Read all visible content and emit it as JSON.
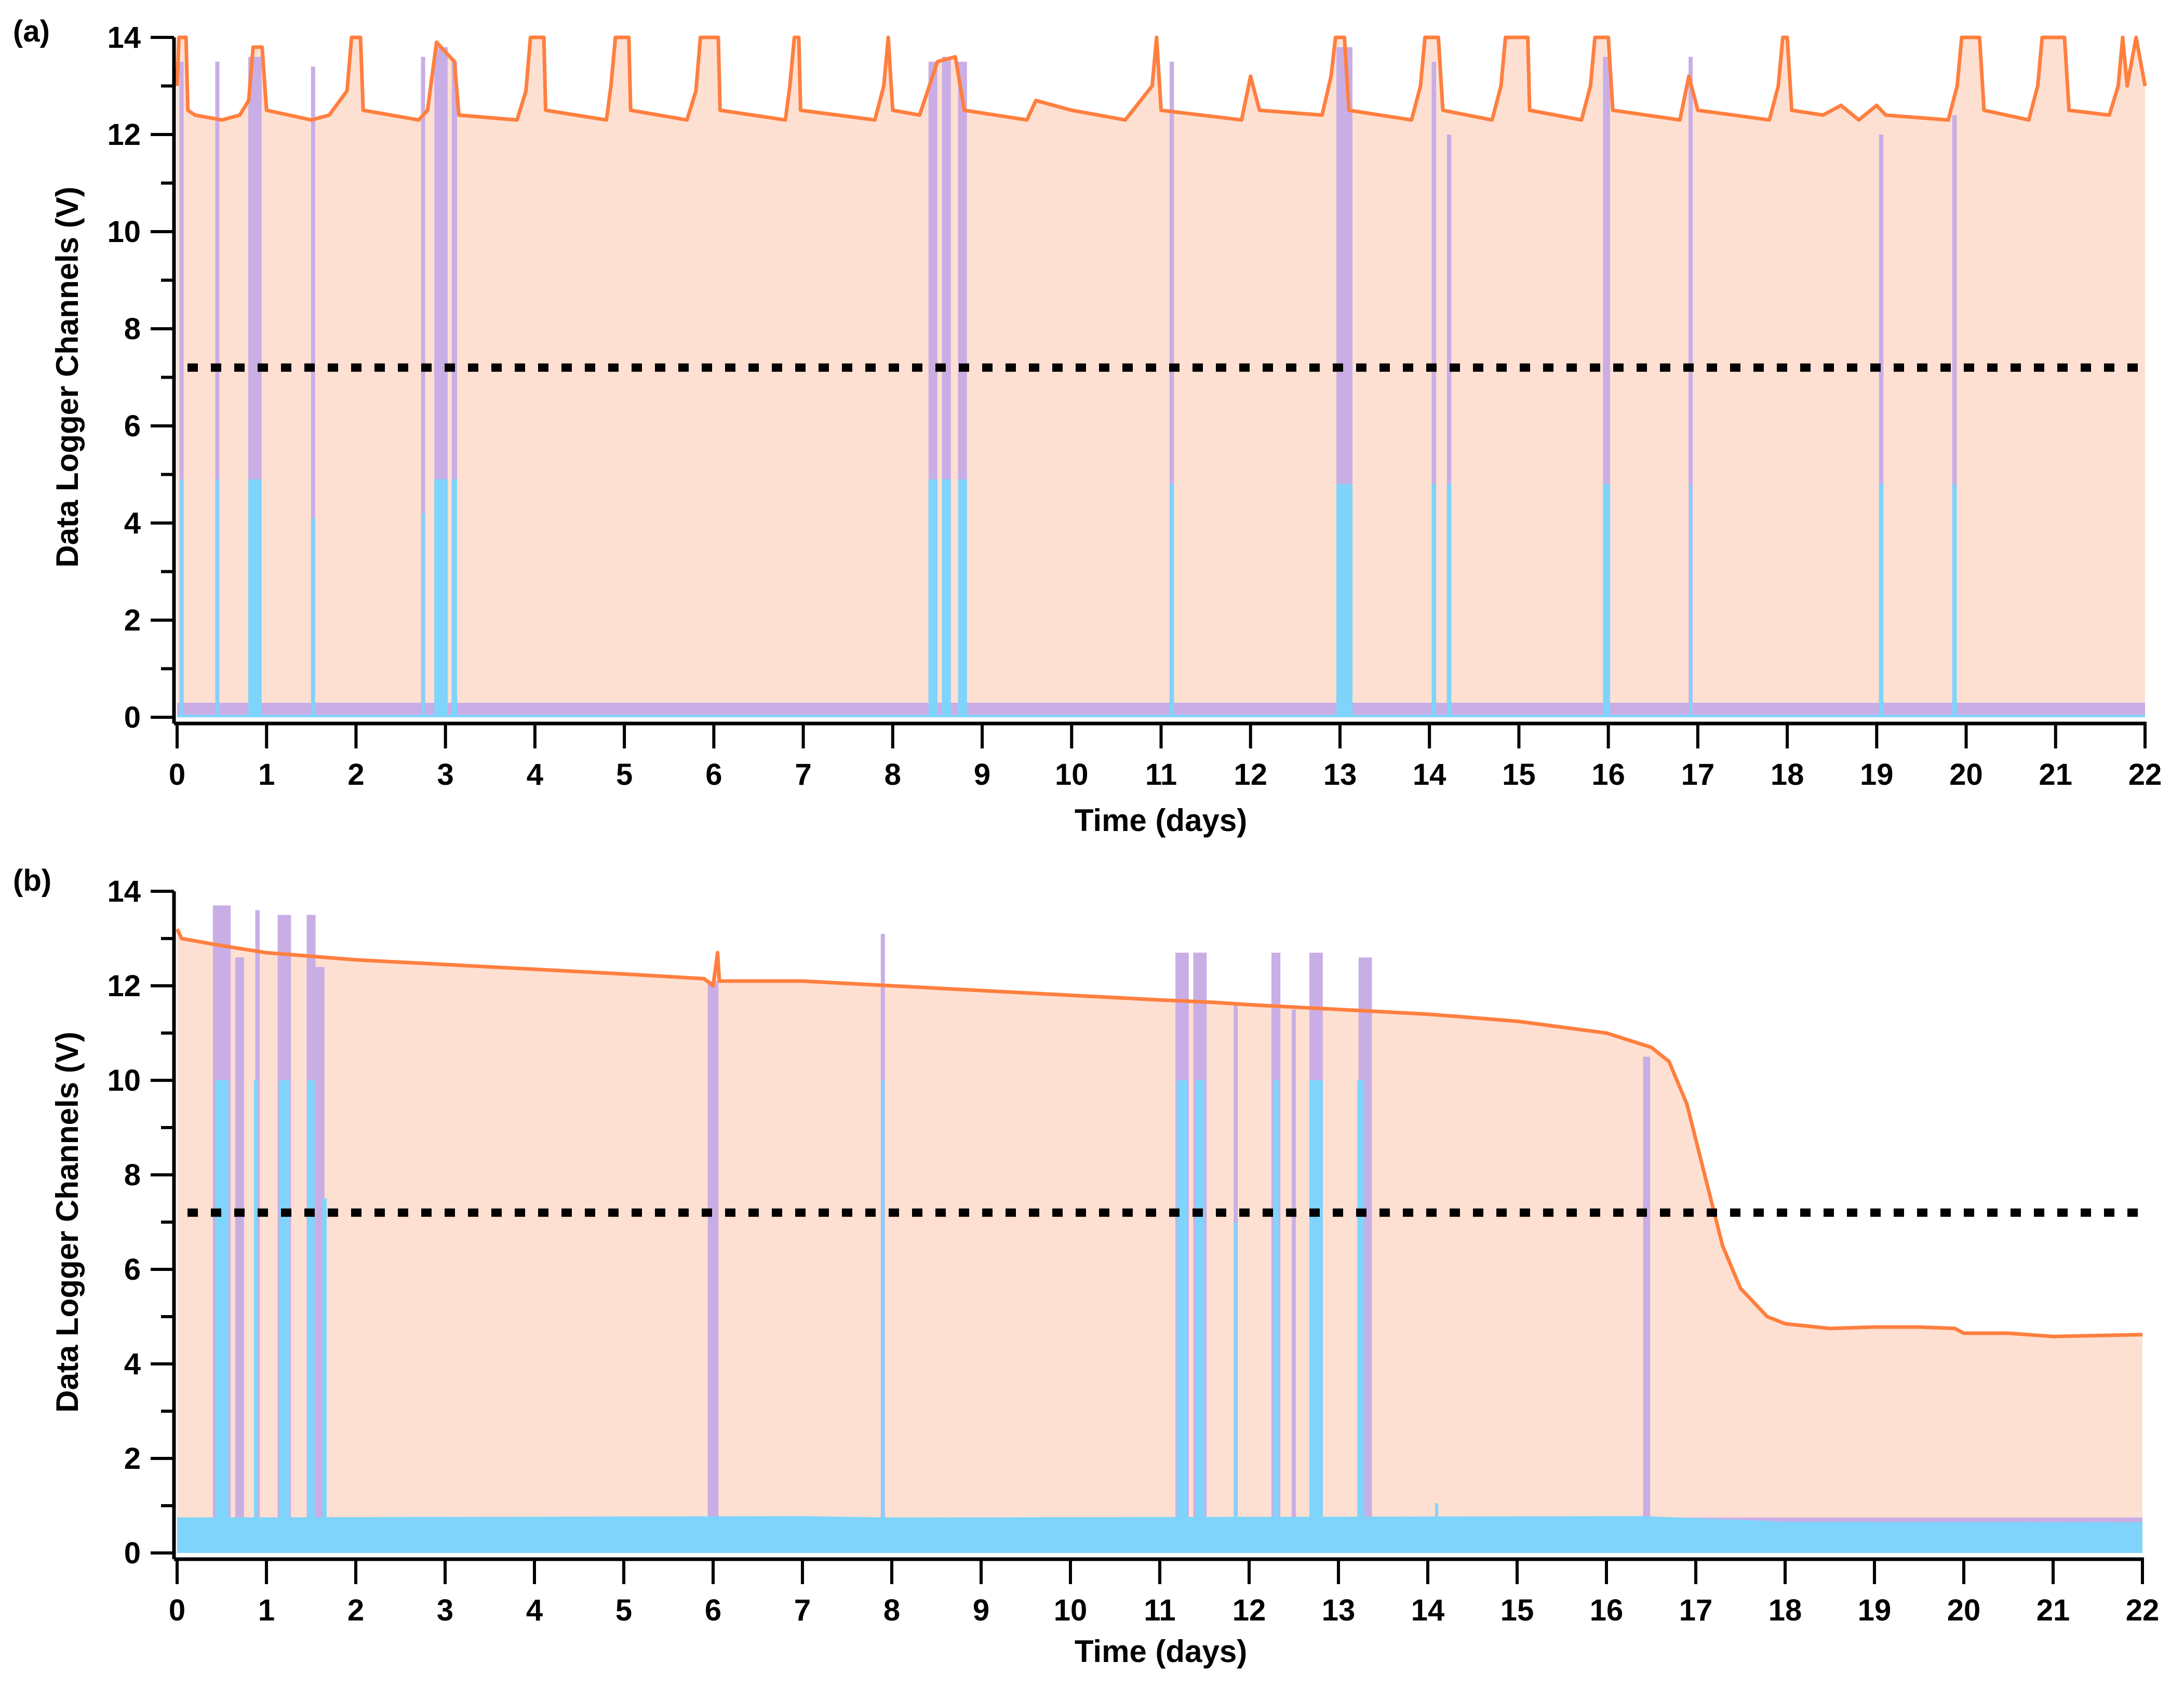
{
  "colors": {
    "battery_line": "#ff7f3f",
    "battery_fill": "#fee0d2",
    "purple_channel": "#c9aee6",
    "blue_channel": "#7fd4fb",
    "threshold": "#000000"
  },
  "chart_data": [
    {
      "type": "area",
      "panel_label": "(a)",
      "xlabel": "Time (days)",
      "ylabel": "Data Logger Channels (V)",
      "xlim": [
        0,
        22
      ],
      "ylim": [
        0,
        14
      ],
      "xticks": [
        0,
        1,
        2,
        3,
        4,
        5,
        6,
        7,
        8,
        9,
        10,
        11,
        12,
        13,
        14,
        15,
        16,
        17,
        18,
        19,
        20,
        21,
        22
      ],
      "yticks": [
        0,
        2,
        4,
        6,
        8,
        10,
        12,
        14
      ],
      "grid": false,
      "threshold": 7.2,
      "orange_series": [
        [
          0,
          13.0
        ],
        [
          0.02,
          14
        ],
        [
          0.1,
          14
        ],
        [
          0.12,
          12.5
        ],
        [
          0.2,
          12.4
        ],
        [
          0.5,
          12.3
        ],
        [
          0.7,
          12.4
        ],
        [
          0.8,
          12.7
        ],
        [
          0.85,
          13.8
        ],
        [
          0.95,
          13.8
        ],
        [
          1.0,
          12.5
        ],
        [
          1.5,
          12.3
        ],
        [
          1.7,
          12.4
        ],
        [
          1.9,
          12.9
        ],
        [
          1.95,
          14
        ],
        [
          2.05,
          14
        ],
        [
          2.08,
          12.5
        ],
        [
          2.7,
          12.3
        ],
        [
          2.8,
          12.5
        ],
        [
          2.9,
          13.9
        ],
        [
          3.1,
          13.5
        ],
        [
          3.15,
          12.4
        ],
        [
          3.8,
          12.3
        ],
        [
          3.9,
          12.9
        ],
        [
          3.95,
          14
        ],
        [
          4.1,
          14
        ],
        [
          4.12,
          12.5
        ],
        [
          4.8,
          12.3
        ],
        [
          4.85,
          13.0
        ],
        [
          4.9,
          14
        ],
        [
          5.05,
          14
        ],
        [
          5.07,
          12.5
        ],
        [
          5.7,
          12.3
        ],
        [
          5.8,
          12.9
        ],
        [
          5.85,
          14
        ],
        [
          6.05,
          14
        ],
        [
          6.07,
          12.5
        ],
        [
          6.8,
          12.3
        ],
        [
          6.85,
          13
        ],
        [
          6.9,
          14
        ],
        [
          6.95,
          14
        ],
        [
          6.97,
          12.5
        ],
        [
          7.8,
          12.3
        ],
        [
          7.9,
          13
        ],
        [
          7.95,
          14
        ],
        [
          8.0,
          12.5
        ],
        [
          8.3,
          12.4
        ],
        [
          8.5,
          13.5
        ],
        [
          8.7,
          13.6
        ],
        [
          8.8,
          12.5
        ],
        [
          9.5,
          12.3
        ],
        [
          9.6,
          12.7
        ],
        [
          9.8,
          12.6
        ],
        [
          10.0,
          12.5
        ],
        [
          10.6,
          12.3
        ],
        [
          10.9,
          13
        ],
        [
          10.95,
          14
        ],
        [
          11.0,
          12.5
        ],
        [
          11.9,
          12.3
        ],
        [
          12.0,
          13.2
        ],
        [
          12.1,
          12.5
        ],
        [
          12.8,
          12.4
        ],
        [
          12.9,
          13.2
        ],
        [
          12.95,
          14
        ],
        [
          13.05,
          14
        ],
        [
          13.1,
          12.5
        ],
        [
          13.8,
          12.3
        ],
        [
          13.9,
          13
        ],
        [
          13.95,
          14
        ],
        [
          14.1,
          14
        ],
        [
          14.15,
          12.5
        ],
        [
          14.7,
          12.3
        ],
        [
          14.8,
          13
        ],
        [
          14.85,
          14
        ],
        [
          15.1,
          14
        ],
        [
          15.12,
          12.5
        ],
        [
          15.7,
          12.3
        ],
        [
          15.8,
          13
        ],
        [
          15.85,
          14
        ],
        [
          16.0,
          14
        ],
        [
          16.05,
          12.5
        ],
        [
          16.8,
          12.3
        ],
        [
          16.9,
          13.2
        ],
        [
          17.0,
          12.5
        ],
        [
          17.8,
          12.3
        ],
        [
          17.9,
          13
        ],
        [
          17.95,
          14
        ],
        [
          18.0,
          14
        ],
        [
          18.05,
          12.5
        ],
        [
          18.4,
          12.4
        ],
        [
          18.6,
          12.6
        ],
        [
          18.8,
          12.3
        ],
        [
          19.0,
          12.6
        ],
        [
          19.1,
          12.4
        ],
        [
          19.8,
          12.3
        ],
        [
          19.9,
          13
        ],
        [
          19.95,
          14
        ],
        [
          20.15,
          14
        ],
        [
          20.2,
          12.5
        ],
        [
          20.7,
          12.3
        ],
        [
          20.8,
          13
        ],
        [
          20.85,
          14
        ],
        [
          21.1,
          14
        ],
        [
          21.15,
          12.5
        ],
        [
          21.6,
          12.4
        ],
        [
          21.7,
          13
        ],
        [
          21.75,
          14
        ],
        [
          21.8,
          13
        ],
        [
          21.9,
          14
        ],
        [
          22,
          13
        ]
      ],
      "purple_baseline": 0.3,
      "purple_spikes": [
        [
          0.05,
          13.5,
          0.03
        ],
        [
          0.45,
          13.5,
          0.02
        ],
        [
          0.87,
          13.6,
          0.15
        ],
        [
          1.52,
          13.4,
          0.04
        ],
        [
          2.75,
          13.6,
          0.02
        ],
        [
          2.95,
          13.8,
          0.15
        ],
        [
          3.1,
          13.5,
          0.06
        ],
        [
          8.45,
          13.5,
          0.1
        ],
        [
          8.6,
          13.6,
          0.1
        ],
        [
          8.78,
          13.5,
          0.1
        ],
        [
          11.12,
          13.5,
          0.05
        ],
        [
          13.05,
          13.8,
          0.18
        ],
        [
          14.05,
          13.5,
          0.05
        ],
        [
          14.22,
          12.0,
          0.05
        ],
        [
          15.98,
          13.6,
          0.08
        ],
        [
          16.92,
          13.6,
          0.03
        ],
        [
          19.05,
          12.0,
          0.05
        ],
        [
          19.87,
          12.4,
          0.05
        ]
      ],
      "blue_baseline": [
        [
          0,
          0.05
        ],
        [
          22,
          0.05
        ]
      ],
      "blue_spikes": [
        [
          0.05,
          4.9,
          0.03
        ],
        [
          0.45,
          4.9,
          0.02
        ],
        [
          0.87,
          4.9,
          0.15
        ],
        [
          1.52,
          4.1,
          0.04
        ],
        [
          2.75,
          4.2,
          0.02
        ],
        [
          2.95,
          4.9,
          0.15
        ],
        [
          3.1,
          4.9,
          0.06
        ],
        [
          8.45,
          4.9,
          0.1
        ],
        [
          8.6,
          4.9,
          0.1
        ],
        [
          8.78,
          4.9,
          0.1
        ],
        [
          11.12,
          4.8,
          0.05
        ],
        [
          13.05,
          4.8,
          0.18
        ],
        [
          14.05,
          4.8,
          0.05
        ],
        [
          14.22,
          4.8,
          0.05
        ],
        [
          15.98,
          4.8,
          0.08
        ],
        [
          16.92,
          4.8,
          0.03
        ],
        [
          19.05,
          4.8,
          0.05
        ],
        [
          19.87,
          4.8,
          0.05
        ]
      ]
    },
    {
      "type": "area",
      "panel_label": "(b)",
      "xlabel": "Time (days)",
      "ylabel": "Data Logger Channels (V)",
      "xlim": [
        0,
        22
      ],
      "ylim": [
        0,
        14
      ],
      "xticks": [
        0,
        1,
        2,
        3,
        4,
        5,
        6,
        7,
        8,
        9,
        10,
        11,
        12,
        13,
        14,
        15,
        16,
        17,
        18,
        19,
        20,
        21,
        22
      ],
      "yticks": [
        0,
        2,
        4,
        6,
        8,
        10,
        12,
        14
      ],
      "grid": false,
      "threshold": 7.2,
      "orange_series": [
        [
          0,
          13.2
        ],
        [
          0.05,
          13.0
        ],
        [
          0.5,
          12.85
        ],
        [
          1,
          12.7
        ],
        [
          2,
          12.55
        ],
        [
          3,
          12.45
        ],
        [
          4,
          12.35
        ],
        [
          5,
          12.25
        ],
        [
          5.9,
          12.15
        ],
        [
          6.0,
          12.0
        ],
        [
          6.05,
          12.7
        ],
        [
          6.07,
          12.1
        ],
        [
          7,
          12.1
        ],
        [
          8,
          12.0
        ],
        [
          9,
          11.9
        ],
        [
          10,
          11.8
        ],
        [
          11,
          11.7
        ],
        [
          11.6,
          11.65
        ],
        [
          12,
          11.6
        ],
        [
          13,
          11.5
        ],
        [
          14,
          11.4
        ],
        [
          15,
          11.25
        ],
        [
          16,
          11.0
        ],
        [
          16.5,
          10.7
        ],
        [
          16.7,
          10.4
        ],
        [
          16.9,
          9.5
        ],
        [
          17.1,
          8.0
        ],
        [
          17.3,
          6.5
        ],
        [
          17.5,
          5.6
        ],
        [
          17.8,
          5.0
        ],
        [
          18,
          4.85
        ],
        [
          18.5,
          4.75
        ],
        [
          19,
          4.78
        ],
        [
          19.5,
          4.78
        ],
        [
          19.9,
          4.75
        ],
        [
          20,
          4.65
        ],
        [
          20.5,
          4.65
        ],
        [
          21,
          4.58
        ],
        [
          21.5,
          4.6
        ],
        [
          22,
          4.62
        ]
      ],
      "purple_baseline": 0.75,
      "purple_spikes": [
        [
          0.5,
          13.7,
          0.2
        ],
        [
          0.7,
          12.6,
          0.1
        ],
        [
          0.9,
          13.6,
          0.05
        ],
        [
          1.2,
          13.5,
          0.15
        ],
        [
          1.5,
          13.5,
          0.1
        ],
        [
          1.6,
          12.4,
          0.1
        ],
        [
          6.0,
          12.1,
          0.12
        ],
        [
          7.9,
          13.1,
          0.03
        ],
        [
          11.25,
          12.7,
          0.15
        ],
        [
          11.45,
          12.7,
          0.15
        ],
        [
          11.85,
          11.6,
          0.04
        ],
        [
          12.3,
          12.7,
          0.1
        ],
        [
          12.5,
          11.5,
          0.04
        ],
        [
          12.75,
          12.7,
          0.15
        ],
        [
          13.3,
          12.6,
          0.15
        ],
        [
          16.45,
          10.5,
          0.08
        ]
      ],
      "blue_baseline": [
        [
          0,
          0.75
        ],
        [
          7,
          0.78
        ],
        [
          8,
          0.75
        ],
        [
          16.4,
          0.78
        ],
        [
          17.5,
          0.7
        ],
        [
          18,
          0.66
        ],
        [
          22,
          0.65
        ]
      ],
      "blue_spikes": [
        [
          0.5,
          10.0,
          0.15
        ],
        [
          0.88,
          10.0,
          0.04
        ],
        [
          1.2,
          10.0,
          0.12
        ],
        [
          1.5,
          10.0,
          0.08
        ],
        [
          1.65,
          7.5,
          0.05
        ],
        [
          7.9,
          10.0,
          0.02
        ],
        [
          11.25,
          10.0,
          0.12
        ],
        [
          11.45,
          10.0,
          0.1
        ],
        [
          11.85,
          7.0,
          0.03
        ],
        [
          12.3,
          10.0,
          0.06
        ],
        [
          12.75,
          10.0,
          0.15
        ],
        [
          13.25,
          10.0,
          0.08
        ],
        [
          14.1,
          1.05,
          0.02
        ]
      ]
    }
  ]
}
